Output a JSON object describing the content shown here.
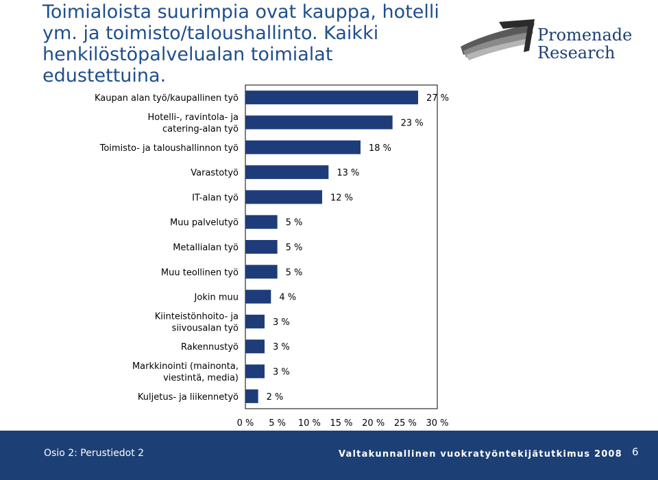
{
  "slide": {
    "title": "Toimialoista suurimpia ovat kauppa, hotelli ym. ja toimisto/taloushallinto. Kaikki henkilöstöpalvelualan toimialat edustettuina."
  },
  "logo": {
    "line1": "Promenade",
    "line2": "Research"
  },
  "footer": {
    "left": "Osio 2: Perustiedot 2",
    "right": "Valtakunnallinen vuokratyöntekijätutkimus 2008",
    "page": "6"
  },
  "colors": {
    "bar_fill": "#1f3c7a",
    "title": "#1f4e8c",
    "footer_bg": "#1c3f75"
  },
  "chart_data": {
    "type": "bar",
    "orientation": "horizontal",
    "categories": [
      "Kaupan alan työ/kaupallinen työ",
      "Hotelli-, ravintola- ja catering-alan työ",
      "Toimisto- ja taloushallinnon työ",
      "Varastotyö",
      "IT-alan työ",
      "Muu palvelutyö",
      "Metallialan työ",
      "Muu teollinen työ",
      "Jokin muu",
      "Kiinteistönhoito- ja siivousalan työ",
      "Rakennustyö",
      "Markkinointi (mainonta, viestintä, media)",
      "Kuljetus- ja liikennetyö"
    ],
    "values": [
      27,
      23,
      18,
      13,
      12,
      5,
      5,
      5,
      4,
      3,
      3,
      3,
      2
    ],
    "value_labels": [
      "27 %",
      "23 %",
      "18 %",
      "13 %",
      "12 %",
      "5 %",
      "5 %",
      "5 %",
      "4 %",
      "3 %",
      "3 %",
      "3 %",
      "2 %"
    ],
    "xlim": [
      0,
      30
    ],
    "xticks": [
      "0 %",
      "5 %",
      "10 %",
      "15 %",
      "20 %",
      "25 %",
      "30 %"
    ],
    "grid": false
  }
}
